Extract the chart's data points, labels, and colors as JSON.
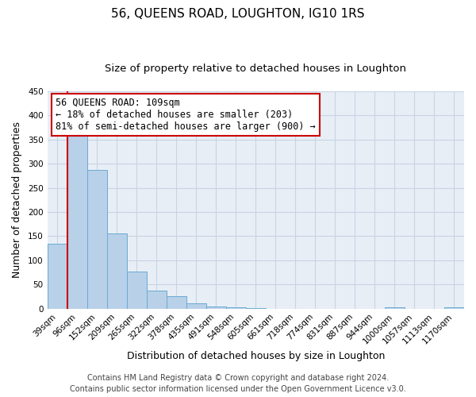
{
  "title": "56, QUEENS ROAD, LOUGHTON, IG10 1RS",
  "subtitle": "Size of property relative to detached houses in Loughton",
  "xlabel": "Distribution of detached houses by size in Loughton",
  "ylabel": "Number of detached properties",
  "bin_labels": [
    "39sqm",
    "96sqm",
    "152sqm",
    "209sqm",
    "265sqm",
    "322sqm",
    "378sqm",
    "435sqm",
    "491sqm",
    "548sqm",
    "605sqm",
    "661sqm",
    "718sqm",
    "774sqm",
    "831sqm",
    "887sqm",
    "944sqm",
    "1000sqm",
    "1057sqm",
    "1113sqm",
    "1170sqm"
  ],
  "bar_values": [
    135,
    370,
    287,
    155,
    76,
    38,
    25,
    11,
    5,
    2,
    1,
    0,
    0,
    0,
    0,
    0,
    0,
    2,
    0,
    0,
    2
  ],
  "bar_color": "#b8d0e8",
  "bar_edge_color": "#6aaad4",
  "property_line_bin_index": 0.5,
  "annotation_line1": "56 QUEENS ROAD: 109sqm",
  "annotation_line2": "← 18% of detached houses are smaller (203)",
  "annotation_line3": "81% of semi-detached houses are larger (900) →",
  "annotation_box_color": "#ffffff",
  "annotation_box_edge_color": "#cc0000",
  "red_line_color": "#cc0000",
  "ylim": [
    0,
    450
  ],
  "footer_line1": "Contains HM Land Registry data © Crown copyright and database right 2024.",
  "footer_line2": "Contains public sector information licensed under the Open Government Licence v3.0.",
  "background_color": "#ffffff",
  "plot_bg_color": "#e8eef5",
  "grid_color": "#c8d4e4",
  "title_fontsize": 11,
  "subtitle_fontsize": 9.5,
  "axis_label_fontsize": 9,
  "tick_fontsize": 7.5,
  "annotation_fontsize": 8.5,
  "footer_fontsize": 7
}
